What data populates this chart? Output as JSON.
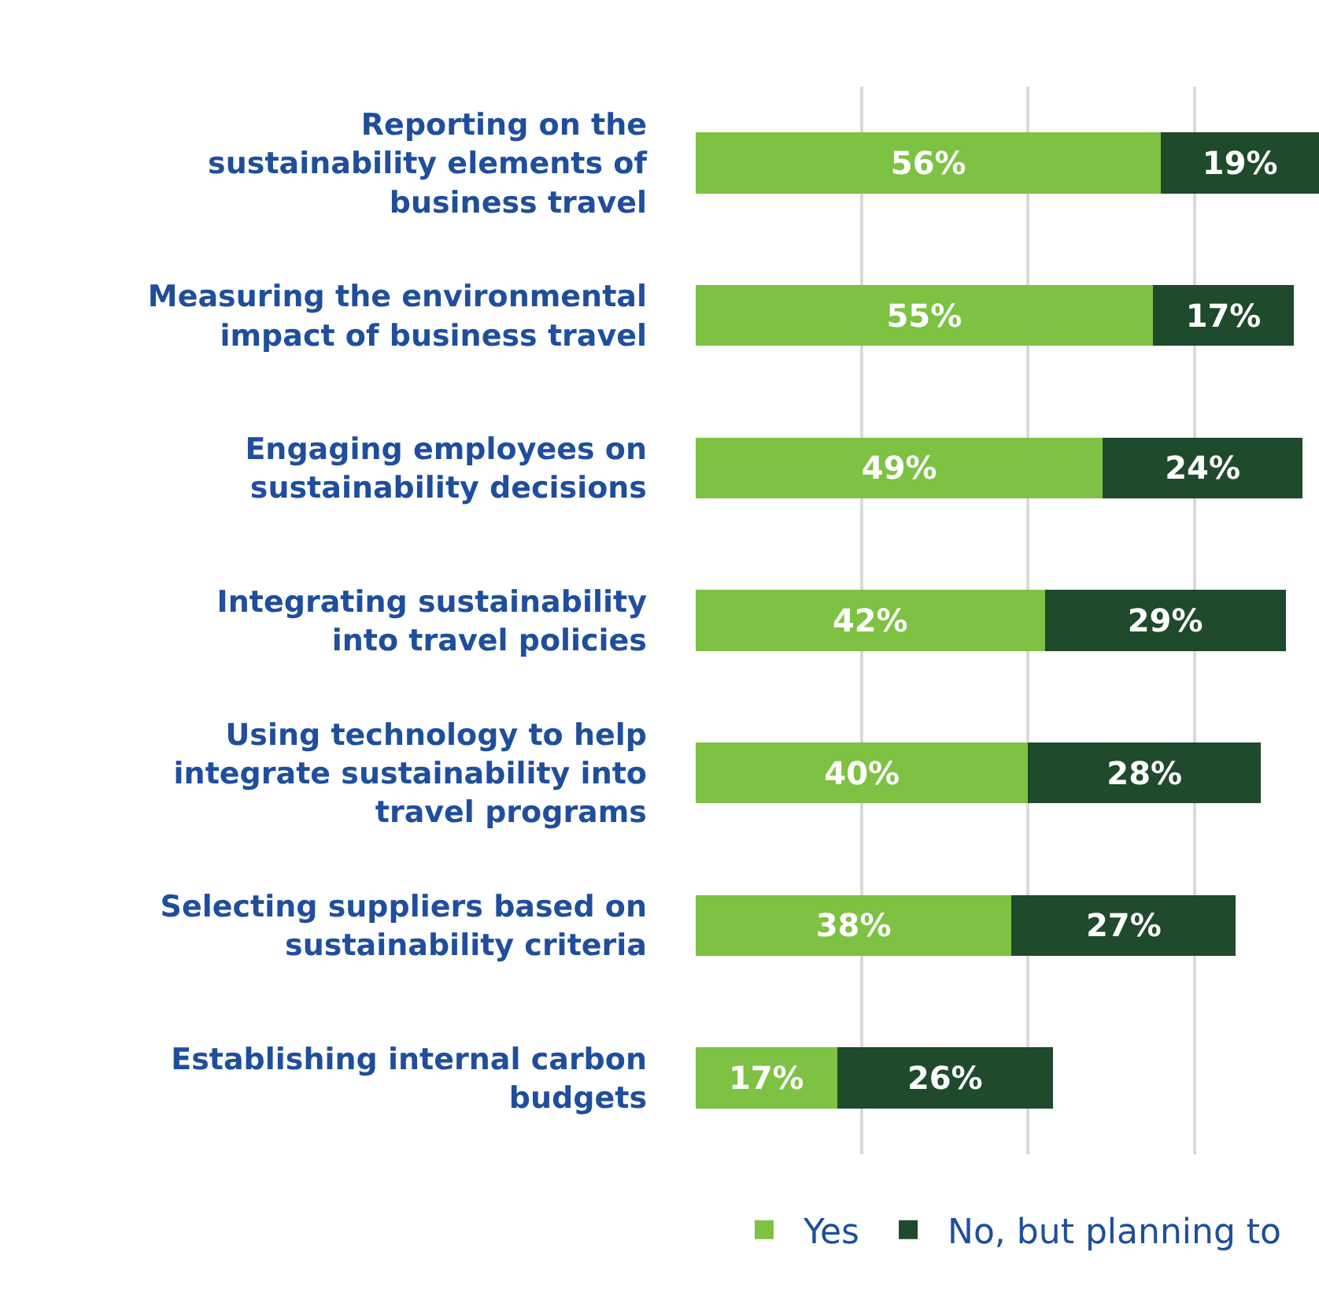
{
  "chart_data": {
    "type": "bar",
    "orientation": "horizontal",
    "stacked": true,
    "categories": [
      "Reporting on the\nsustainability elements of\nbusiness travel",
      "Measuring the environmental\nimpact of business travel",
      "Engaging employees on\nsustainability decisions",
      "Integrating sustainability\ninto travel policies",
      "Using technology to help\nintegrate sustainability into\ntravel programs",
      "Selecting suppliers based on\nsustainability criteria",
      "Establishing internal carbon\nbudgets"
    ],
    "series": [
      {
        "name": "Yes",
        "color": "#7dc242",
        "values": [
          56,
          55,
          49,
          42,
          40,
          38,
          17
        ],
        "value_labels": [
          "56%",
          "55%",
          "49%",
          "42%",
          "40%",
          "38%",
          "17%"
        ]
      },
      {
        "name": "No, but planning to",
        "color": "#1f4a2b",
        "values": [
          19,
          17,
          24,
          29,
          28,
          27,
          26
        ],
        "value_labels": [
          "19%",
          "17%",
          "24%",
          "29%",
          "28%",
          "27%",
          "26%"
        ]
      }
    ],
    "xlim": [
      0,
      75
    ],
    "xticks": [
      {
        "value": 20,
        "label": null
      },
      {
        "value": 40,
        "label": null
      },
      {
        "value": 60,
        "label": null
      }
    ],
    "tick_labels": "y",
    "grid": "x",
    "legend": "bottom"
  }
}
